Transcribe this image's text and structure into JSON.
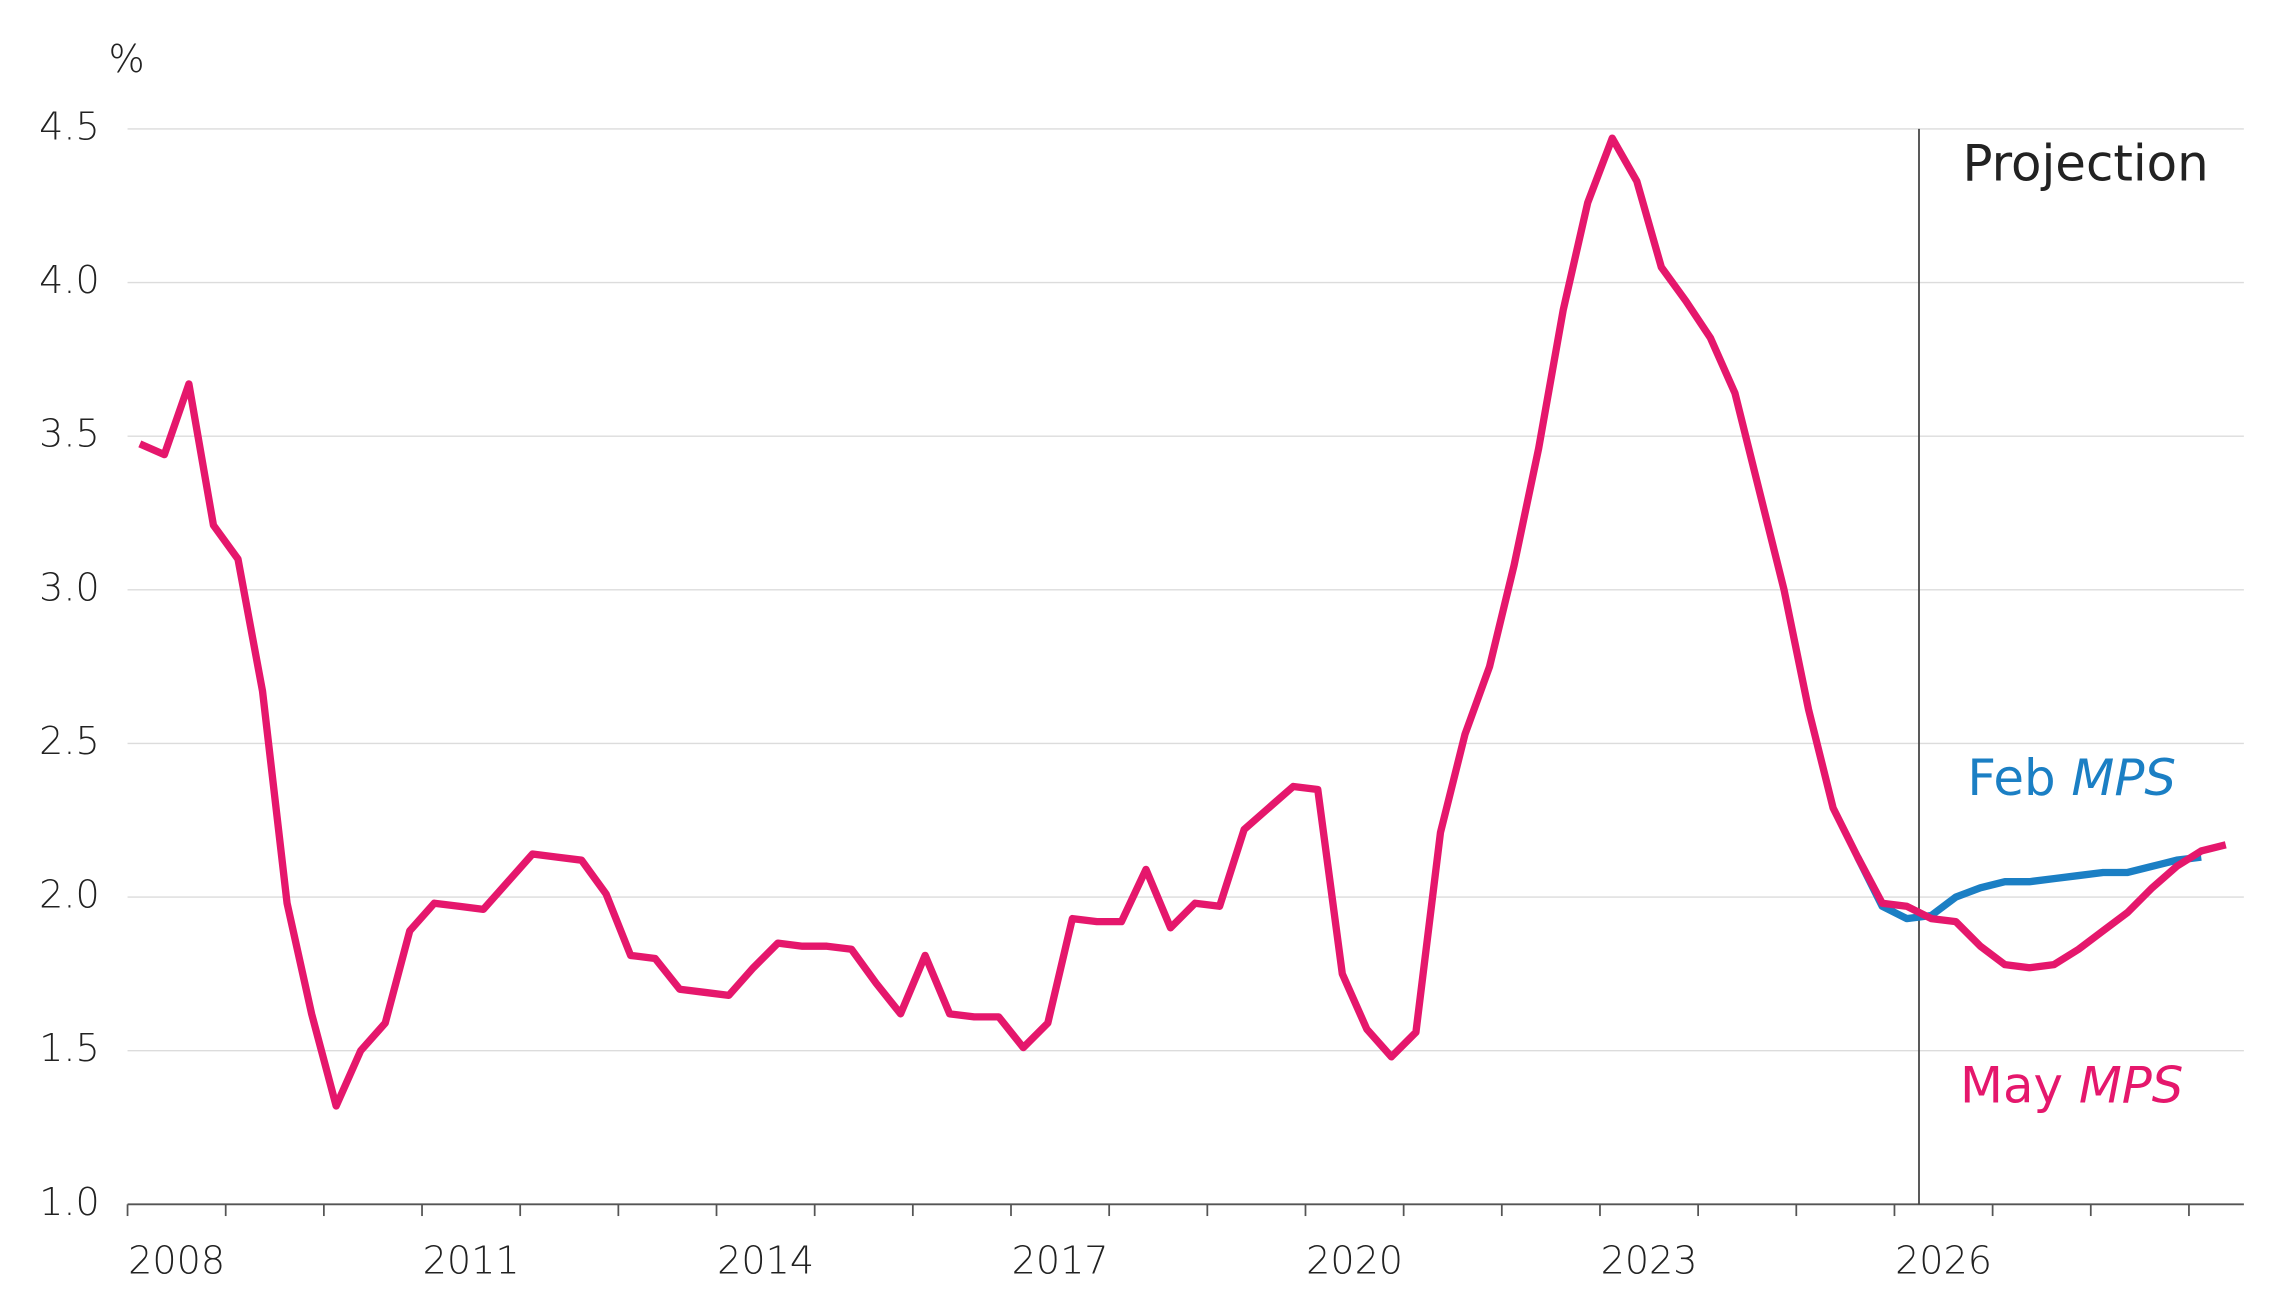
{
  "chart_data": {
    "type": "line",
    "y_unit": "%",
    "x": [
      2008.125,
      2008.375,
      2008.625,
      2008.875,
      2009.125,
      2009.375,
      2009.625,
      2009.875,
      2010.125,
      2010.375,
      2010.625,
      2010.875,
      2011.125,
      2011.375,
      2011.625,
      2011.875,
      2012.125,
      2012.375,
      2012.625,
      2012.875,
      2013.125,
      2013.375,
      2013.625,
      2013.875,
      2014.125,
      2014.375,
      2014.625,
      2014.875,
      2015.125,
      2015.375,
      2015.625,
      2015.875,
      2016.125,
      2016.375,
      2016.625,
      2016.875,
      2017.125,
      2017.375,
      2017.625,
      2017.875,
      2018.125,
      2018.375,
      2018.625,
      2018.875,
      2019.125,
      2019.375,
      2019.625,
      2019.875,
      2020.125,
      2020.375,
      2020.625,
      2020.875,
      2021.125,
      2021.375,
      2021.625,
      2021.875,
      2022.125,
      2022.375,
      2022.625,
      2022.875,
      2023.125,
      2023.375,
      2023.625,
      2023.875,
      2024.125,
      2024.375,
      2024.625,
      2024.875,
      2025.125,
      2025.375,
      2025.625,
      2025.875,
      2026.125,
      2026.375,
      2026.625,
      2026.875,
      2027.125,
      2027.375,
      2027.625,
      2027.875,
      2028.125,
      2028.375,
      2028.625,
      2028.875,
      2029.125,
      2029.375
    ],
    "series": [
      {
        "name": "Feb MPS",
        "color": "#1b7fc4",
        "values": [
          null,
          null,
          null,
          null,
          null,
          null,
          null,
          null,
          null,
          null,
          null,
          null,
          null,
          null,
          null,
          null,
          null,
          null,
          null,
          null,
          null,
          null,
          null,
          null,
          null,
          null,
          null,
          null,
          null,
          null,
          null,
          null,
          null,
          null,
          null,
          null,
          null,
          null,
          null,
          null,
          null,
          null,
          null,
          null,
          null,
          null,
          null,
          null,
          null,
          null,
          null,
          null,
          null,
          null,
          null,
          null,
          null,
          null,
          null,
          null,
          null,
          null,
          null,
          null,
          null,
          null,
          null,
          null,
          null,
          null,
          2.13,
          1.97,
          1.93,
          1.94,
          2.0,
          2.03,
          2.05,
          2.05,
          2.06,
          2.07,
          2.08,
          2.08,
          2.1,
          2.12,
          2.13,
          null
        ]
      },
      {
        "name": "May MPS",
        "color": "#e5176c",
        "values": [
          3.475,
          3.44,
          3.67,
          3.21,
          3.1,
          2.67,
          1.98,
          1.62,
          1.32,
          1.5,
          1.59,
          1.89,
          1.98,
          1.97,
          1.96,
          2.05,
          2.14,
          2.13,
          2.12,
          2.01,
          1.81,
          1.8,
          1.7,
          1.69,
          1.68,
          1.77,
          1.85,
          1.84,
          1.84,
          1.83,
          1.72,
          1.62,
          1.81,
          1.62,
          1.61,
          1.61,
          1.51,
          1.59,
          1.93,
          1.92,
          1.92,
          2.09,
          1.9,
          1.98,
          1.97,
          2.22,
          2.29,
          2.36,
          2.35,
          1.75,
          1.57,
          1.48,
          1.56,
          2.21,
          2.53,
          2.75,
          3.08,
          3.46,
          3.91,
          4.26,
          4.47,
          4.33,
          4.05,
          3.94,
          3.82,
          3.64,
          3.32,
          3.0,
          2.61,
          2.29,
          2.13,
          1.98,
          1.97,
          1.93,
          1.92,
          1.84,
          1.78,
          1.77,
          1.78,
          1.83,
          1.89,
          1.95,
          2.03,
          2.1,
          2.15,
          2.17
        ]
      }
    ],
    "annotations": [
      {
        "text": "Feb",
        "italic_text": "MPS",
        "series": 0
      },
      {
        "text": "May",
        "italic_text": "MPS",
        "series": 1
      }
    ],
    "projection_start": 2026.25,
    "projection_label": "Projection",
    "xlim": [
      2008,
      2029.5
    ],
    "xticks": [
      2008,
      2009,
      2010,
      2011,
      2012,
      2013,
      2014,
      2015,
      2016,
      2017,
      2018,
      2019,
      2020,
      2021,
      2022,
      2023,
      2024,
      2025,
      2026,
      2027,
      2028,
      2029
    ],
    "xtick_labels": [
      2008,
      2011,
      2014,
      2017,
      2020,
      2023,
      2026
    ],
    "ylim": [
      1,
      4.5
    ],
    "yticks": [
      {
        "value": 1,
        "label": "1.0"
      },
      1.5,
      {
        "value": 2,
        "label": "2.0"
      },
      2.5,
      {
        "value": 3,
        "label": "3.0"
      },
      3.5,
      {
        "value": 4,
        "label": "4.0"
      },
      4.5
    ],
    "grid": true
  }
}
